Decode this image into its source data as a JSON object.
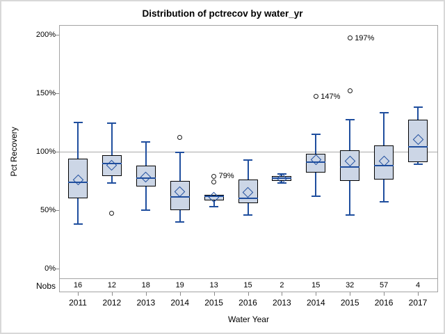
{
  "figure": {
    "title": "Distribution of pctrecov by water_yr",
    "xlabel": "Water Year",
    "ylabel": "Pct Recovery",
    "nobs_row_label": "Nobs"
  },
  "chart_data": {
    "type": "boxplot",
    "title": "Distribution of pctrecov by water_yr",
    "xlabel": "Water Year",
    "ylabel": "Pct Recovery",
    "row_label": "Nobs",
    "y_ticks": [
      0,
      50,
      100,
      150,
      200
    ],
    "y_tick_suffix": "%",
    "ylim": [
      -8,
      208
    ],
    "reference_line_y": 100,
    "grid": false,
    "legend": false,
    "categories": [
      "2011",
      "2012",
      "2013",
      "2014",
      "2015",
      "2016",
      "2013",
      "2014",
      "2015",
      "2016",
      "2017"
    ],
    "nobs": [
      16,
      12,
      18,
      19,
      13,
      15,
      2,
      15,
      32,
      57,
      4
    ],
    "boxes": [
      {
        "year": "2011",
        "nobs": 16,
        "whisker_low": 38,
        "q1": 60,
        "median": 74,
        "q3": 94,
        "whisker_high": 125,
        "mean": 76,
        "outliers": []
      },
      {
        "year": "2012",
        "nobs": 12,
        "whisker_low": 73,
        "q1": 79,
        "median": 90,
        "q3": 97,
        "whisker_high": 124,
        "mean": 88,
        "outliers": [
          {
            "value": 47
          }
        ]
      },
      {
        "year": "2013",
        "nobs": 18,
        "whisker_low": 50,
        "q1": 70,
        "median": 77,
        "q3": 88,
        "whisker_high": 108,
        "mean": 78,
        "outliers": []
      },
      {
        "year": "2014",
        "nobs": 19,
        "whisker_low": 40,
        "q1": 50,
        "median": 61,
        "q3": 75,
        "whisker_high": 99,
        "mean": 66,
        "outliers": [
          {
            "value": 112
          }
        ]
      },
      {
        "year": "2015",
        "nobs": 13,
        "whisker_low": 53,
        "q1": 58,
        "median": 62,
        "q3": 63,
        "whisker_high": 63,
        "mean": 61,
        "outliers": [
          {
            "value": 74
          },
          {
            "value": 79,
            "label": "79%"
          }
        ]
      },
      {
        "year": "2016",
        "nobs": 15,
        "whisker_low": 46,
        "q1": 56,
        "median": 60,
        "q3": 76,
        "whisker_high": 93,
        "mean": 65,
        "outliers": []
      },
      {
        "year": "2013",
        "nobs": 2,
        "whisker_low": 73,
        "q1": 75,
        "median": 77,
        "q3": 79,
        "whisker_high": 81,
        "mean": 77,
        "outliers": []
      },
      {
        "year": "2014",
        "nobs": 15,
        "whisker_low": 62,
        "q1": 82,
        "median": 91,
        "q3": 98,
        "whisker_high": 115,
        "mean": 93,
        "outliers": [
          {
            "value": 147,
            "label": "147%"
          }
        ]
      },
      {
        "year": "2015",
        "nobs": 32,
        "whisker_low": 46,
        "q1": 75,
        "median": 87,
        "q3": 101,
        "whisker_high": 127,
        "mean": 92,
        "outliers": [
          {
            "value": 152
          },
          {
            "value": 197,
            "label": "197%"
          }
        ]
      },
      {
        "year": "2016",
        "nobs": 57,
        "whisker_low": 57,
        "q1": 76,
        "median": 88,
        "q3": 105,
        "whisker_high": 133,
        "mean": 92,
        "outliers": []
      },
      {
        "year": "2017",
        "nobs": 4,
        "whisker_low": 89,
        "q1": 91,
        "median": 104,
        "q3": 127,
        "whisker_high": 138,
        "mean": 110,
        "outliers": []
      }
    ],
    "colors": {
      "box_fill": "#ccd6e6",
      "box_border": "#000000",
      "whisker": "#1f4e9e",
      "median": "#1f4e9e",
      "mean_marker": "#1f4e9e",
      "outlier": "#1a1a1a",
      "frame": "#a3a3a3",
      "reference_line": "#a9a9a9",
      "text": "#000000"
    }
  }
}
